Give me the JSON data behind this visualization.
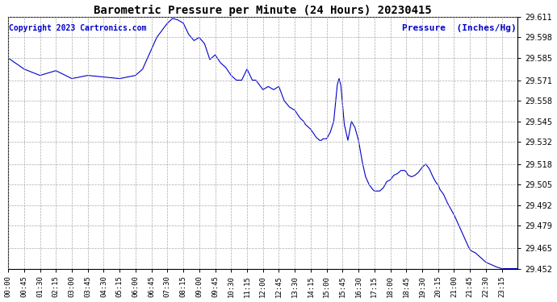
{
  "title": "Barometric Pressure per Minute (24 Hours) 20230415",
  "ylabel": "Pressure  (Inches/Hg)",
  "copyright": "Copyright 2023 Cartronics.com",
  "line_color": "#0000cc",
  "background_color": "#ffffff",
  "grid_color": "#aaaaaa",
  "ylabel_color": "#0000cc",
  "copyright_color": "#0000cc",
  "ylim": [
    29.452,
    29.611
  ],
  "yticks": [
    29.452,
    29.465,
    29.479,
    29.492,
    29.505,
    29.518,
    29.532,
    29.545,
    29.558,
    29.571,
    29.585,
    29.598,
    29.611
  ],
  "xtick_labels": [
    "00:00",
    "00:45",
    "01:30",
    "02:15",
    "03:00",
    "03:45",
    "04:30",
    "05:15",
    "06:00",
    "06:45",
    "07:30",
    "08:15",
    "09:00",
    "09:45",
    "10:30",
    "11:15",
    "12:00",
    "12:45",
    "13:30",
    "14:15",
    "15:00",
    "15:45",
    "16:30",
    "17:15",
    "18:00",
    "18:45",
    "19:30",
    "20:15",
    "21:00",
    "21:45",
    "22:30",
    "23:15"
  ],
  "control_pts_x": [
    0,
    45,
    90,
    135,
    180,
    225,
    270,
    315,
    360,
    380,
    420,
    450,
    465,
    480,
    495,
    510,
    525,
    540,
    555,
    570,
    585,
    600,
    615,
    630,
    645,
    660,
    675,
    690,
    700,
    720,
    735,
    750,
    765,
    780,
    795,
    810,
    825,
    835,
    840,
    855,
    870,
    880,
    885,
    890,
    900,
    910,
    920,
    930,
    935,
    940,
    945,
    950,
    960,
    970,
    975,
    980,
    990,
    1000,
    1010,
    1020,
    1030,
    1035,
    1050,
    1060,
    1065,
    1070,
    1080,
    1090,
    1100,
    1110,
    1120,
    1125,
    1130,
    1140,
    1150,
    1160,
    1170,
    1180,
    1190,
    1200,
    1210,
    1215,
    1220,
    1230,
    1240,
    1250,
    1260,
    1270,
    1280,
    1290,
    1300,
    1305,
    1310,
    1320,
    1330,
    1340,
    1350,
    1360,
    1370,
    1380,
    1395,
    1440
  ],
  "control_pts_y": [
    29.585,
    29.578,
    29.574,
    29.577,
    29.572,
    29.574,
    29.573,
    29.572,
    29.574,
    29.578,
    29.598,
    29.607,
    29.61,
    29.609,
    29.607,
    29.6,
    29.596,
    29.598,
    29.594,
    29.584,
    29.587,
    29.582,
    29.579,
    29.574,
    29.571,
    29.571,
    29.578,
    29.571,
    29.571,
    29.565,
    29.567,
    29.565,
    29.567,
    29.558,
    29.554,
    29.552,
    29.547,
    29.545,
    29.543,
    29.54,
    29.535,
    29.533,
    29.533,
    29.534,
    29.534,
    29.538,
    29.545,
    29.568,
    29.572,
    29.568,
    29.555,
    29.543,
    29.533,
    29.545,
    29.543,
    29.541,
    29.533,
    29.52,
    29.51,
    29.505,
    29.502,
    29.501,
    29.501,
    29.503,
    29.505,
    29.507,
    29.508,
    29.511,
    29.512,
    29.514,
    29.514,
    29.513,
    29.511,
    29.51,
    29.511,
    29.513,
    29.516,
    29.518,
    29.515,
    29.51,
    29.506,
    29.505,
    29.502,
    29.499,
    29.494,
    29.49,
    29.486,
    29.481,
    29.476,
    29.471,
    29.466,
    29.464,
    29.463,
    29.462,
    29.46,
    29.458,
    29.456,
    29.455,
    29.454,
    29.453,
    29.452,
    29.452
  ]
}
